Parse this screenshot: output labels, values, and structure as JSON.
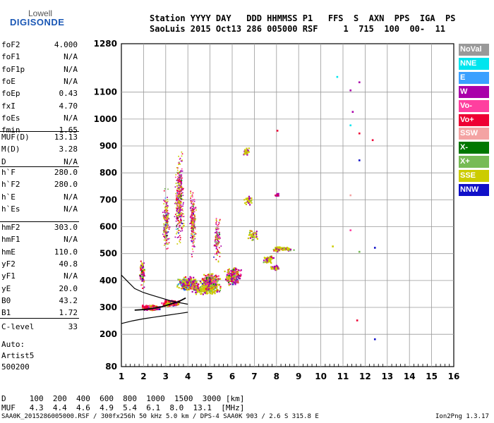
{
  "logo": {
    "line1": "Lowell",
    "line2": "DIGISONDE"
  },
  "header": {
    "line1": "Station YYYY DAY   DDD HHMMSS P1   FFS  S  AXN  PPS  IGA  PS",
    "line2": "SaoLuis 2015 Oct13 286 005000 RSF     1  715  100  00-  11"
  },
  "params": [
    {
      "key": "foF2",
      "value": "4.000"
    },
    {
      "key": "foF1",
      "value": "N/A"
    },
    {
      "key": "foF1p",
      "value": "N/A"
    },
    {
      "key": "foE",
      "value": "N/A"
    },
    {
      "key": "foEp",
      "value": "0.43"
    },
    {
      "key": "fxI",
      "value": "4.70"
    },
    {
      "key": "foEs",
      "value": "N/A"
    },
    {
      "key": "fmin",
      "value": "1.65"
    },
    {
      "key": "MUF(D)",
      "value": "13.13"
    },
    {
      "key": "M(D)",
      "value": "3.28"
    },
    {
      "key": "D",
      "value": "N/A"
    },
    {
      "key": "h`F",
      "value": "280.0"
    },
    {
      "key": "h`F2",
      "value": "280.0"
    },
    {
      "key": "h`E",
      "value": "N/A"
    },
    {
      "key": "h`Es",
      "value": "N/A"
    },
    {
      "key": "hmF2",
      "value": "303.0"
    },
    {
      "key": "hmF1",
      "value": "N/A"
    },
    {
      "key": "hmE",
      "value": "110.0"
    },
    {
      "key": "yF2",
      "value": "40.8"
    },
    {
      "key": "yF1",
      "value": "N/A"
    },
    {
      "key": "yE",
      "value": "20.0"
    },
    {
      "key": "B0",
      "value": "43.2"
    },
    {
      "key": "B1",
      "value": "1.72"
    },
    {
      "key": "C-level",
      "value": "33"
    }
  ],
  "auto": {
    "line1": "Auto:",
    "line2": "Artist5",
    "line3": "500200"
  },
  "legend": [
    {
      "label": "NoVal",
      "color": "#999999"
    },
    {
      "label": "NNE",
      "color": "#00e5ee"
    },
    {
      "label": "E",
      "color": "#3aa0ff"
    },
    {
      "label": "W",
      "color": "#aa00aa"
    },
    {
      "label": "Vo-",
      "color": "#ff3f9f"
    },
    {
      "label": "Vo+",
      "color": "#ee0033"
    },
    {
      "label": "SSW",
      "color": "#f4a3a3"
    },
    {
      "label": "X-",
      "color": "#007700"
    },
    {
      "label": "X+",
      "color": "#77bb55"
    },
    {
      "label": "SSE",
      "color": "#cccc00"
    },
    {
      "label": "NNW",
      "color": "#1010c8"
    }
  ],
  "bottom": {
    "d_row": "D     100  200  400  600  800  1000  1500  3000 [km]",
    "muf_row": "MUF   4.3  4.4  4.6  4.9  5.4  6.1  8.0  13.1  [MHz]"
  },
  "footer": {
    "left": "SAA0K_2015286005000.RSF / 300fx256h 50 kHz 5.0 km / DPS-4 SAA0K 903 / 2.6 S 315.8 E",
    "right": "Ion2Png 1.3.17"
  },
  "chart_data": {
    "type": "scatter",
    "x_ticks": [
      "1",
      "2",
      "3",
      "4",
      "5",
      "6",
      "7",
      "8",
      "9",
      "10",
      "11",
      "12",
      "13",
      "14",
      "15",
      "16"
    ],
    "y_ticks": [
      "80",
      "200",
      "300",
      "400",
      "500",
      "600",
      "700",
      "800",
      "900",
      "1000",
      "1100",
      "1280"
    ],
    "xlim": [
      1,
      16
    ],
    "ylim": [
      80,
      1280
    ],
    "grid": true,
    "upper_trace": [
      [
        1.0,
        420
      ],
      [
        1.3,
        395
      ],
      [
        1.6,
        370
      ],
      [
        2.0,
        355
      ],
      [
        2.4,
        345
      ],
      [
        2.8,
        335
      ],
      [
        3.2,
        325
      ],
      [
        3.6,
        318
      ],
      [
        4.0,
        312
      ]
    ],
    "lower_trace": [
      [
        1.0,
        240
      ],
      [
        1.5,
        250
      ],
      [
        2.0,
        258
      ],
      [
        2.5,
        264
      ],
      [
        3.0,
        270
      ],
      [
        3.5,
        276
      ],
      [
        4.0,
        282
      ]
    ],
    "profile_trace": [
      [
        1.6,
        290
      ],
      [
        2.0,
        292
      ],
      [
        2.4,
        296
      ],
      [
        2.8,
        302
      ],
      [
        3.2,
        312
      ],
      [
        3.6,
        322
      ],
      [
        3.9,
        335
      ]
    ],
    "isolated_points": [
      {
        "x": 10.7,
        "y": 1160,
        "mode": "NNE"
      },
      {
        "x": 11.3,
        "y": 1110,
        "mode": "W"
      },
      {
        "x": 11.7,
        "y": 1140,
        "mode": "W"
      },
      {
        "x": 11.4,
        "y": 1030,
        "mode": "W"
      },
      {
        "x": 11.3,
        "y": 980,
        "mode": "NNE"
      },
      {
        "x": 11.7,
        "y": 950,
        "mode": "Vo+"
      },
      {
        "x": 12.3,
        "y": 925,
        "mode": "Vo+"
      },
      {
        "x": 11.7,
        "y": 850,
        "mode": "NNW"
      },
      {
        "x": 11.3,
        "y": 720,
        "mode": "SSW"
      },
      {
        "x": 11.3,
        "y": 590,
        "mode": "Vo-"
      },
      {
        "x": 11.7,
        "y": 510,
        "mode": "X+"
      },
      {
        "x": 12.4,
        "y": 525,
        "mode": "NNW"
      },
      {
        "x": 11.6,
        "y": 255,
        "mode": "Vo+"
      },
      {
        "x": 12.4,
        "y": 185,
        "mode": "NNW"
      },
      {
        "x": 8.0,
        "y": 960,
        "mode": "Vo+"
      },
      {
        "x": 10.5,
        "y": 530,
        "mode": "SSE"
      }
    ]
  }
}
